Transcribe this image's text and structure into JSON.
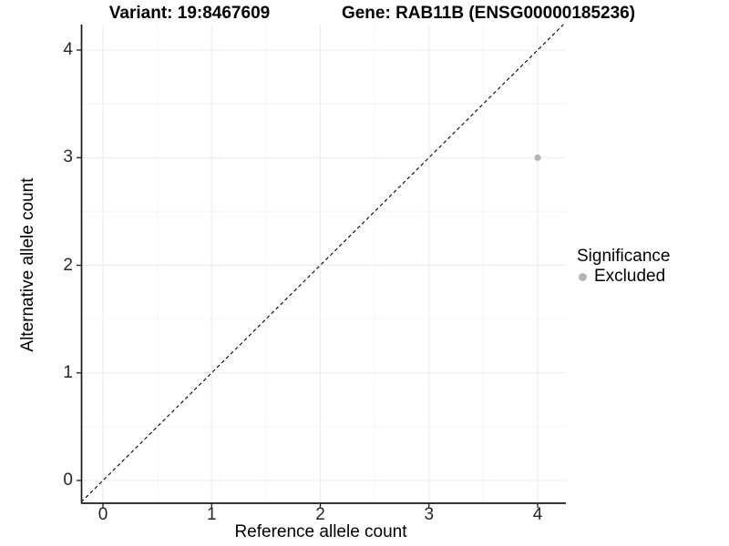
{
  "header": {
    "variant_title": "Variant: 19:8467609",
    "gene_title": "Gene: RAB11B (ENSG00000185236)"
  },
  "legend": {
    "title": "Significance",
    "items": [
      {
        "label": "Excluded",
        "color": "#b4b4b4"
      }
    ]
  },
  "chart_data": {
    "type": "scatter",
    "title": "Variant: 19:8467609 | Gene: RAB11B (ENSG00000185236)",
    "xlabel": "Reference allele count",
    "ylabel": "Alternative allele count",
    "xlim": [
      -0.2,
      4.26
    ],
    "ylim": [
      -0.2,
      4.24
    ],
    "x_ticks": [
      "0",
      "1",
      "2",
      "3",
      "4"
    ],
    "y_ticks": [
      "0",
      "1",
      "2",
      "3",
      "4"
    ],
    "x_tick_values": [
      0,
      1,
      2,
      3,
      4
    ],
    "y_tick_values": [
      0,
      1,
      2,
      3,
      4
    ],
    "grid": {
      "major": [
        0,
        1,
        2,
        3,
        4
      ],
      "minor": [
        0.5,
        1.5,
        2.5,
        3.5
      ],
      "major_color": "#ebebeb",
      "minor_color": "#f4f4f4"
    },
    "reference_line": {
      "type": "identity y=x",
      "style": "dashed",
      "color": "#000000"
    },
    "series": [
      {
        "name": "Excluded",
        "color": "#b4b4b4",
        "points": [
          {
            "x": 4,
            "y": 3
          }
        ]
      }
    ],
    "legend_position": "right",
    "legend_title": "Significance",
    "axis_line_color": "#1a1a1a",
    "background": "#ffffff"
  }
}
